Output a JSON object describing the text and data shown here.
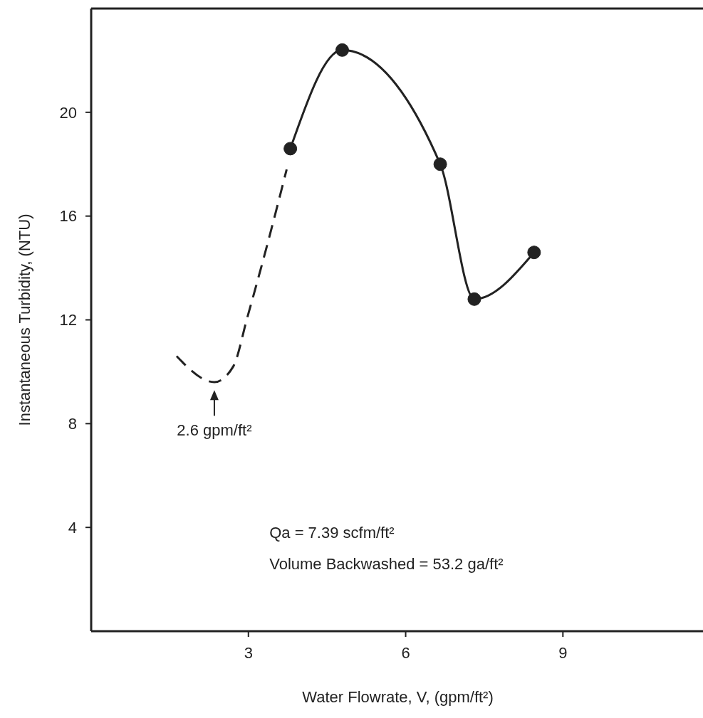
{
  "chart_data": {
    "type": "line",
    "xlabel": "Water Flowrate, V, (gpm/ft²)",
    "ylabel": "Instantaneous Turbidity, (NTU)",
    "series": [
      {
        "color": "#222222",
        "line_style": "solid",
        "marker": "circle",
        "x": [
          3.8,
          4.79,
          6.66,
          7.31,
          8.45
        ],
        "values": [
          18.6,
          22.4,
          18.0,
          12.8,
          14.6
        ]
      },
      {
        "color": "#222222",
        "line_style": "dashed",
        "marker": "none",
        "x": [
          1.63,
          2.35,
          2.71,
          2.98,
          3.36,
          3.73
        ],
        "values": [
          10.6,
          9.6,
          10.2,
          12.1,
          14.9,
          17.8
        ]
      }
    ],
    "xlim": [
      0,
      11.7
    ],
    "ylim": [
      0,
      24
    ],
    "xticks": [
      3,
      6,
      9
    ],
    "yticks": [
      4,
      8,
      12,
      16,
      20
    ],
    "grid": false,
    "legend": false,
    "annotations": [
      "2.6 gpm/ft²",
      "Qa = 7.39 scfm/ft²",
      "Volume Backwashed = 53.2 ga/ft²"
    ]
  }
}
